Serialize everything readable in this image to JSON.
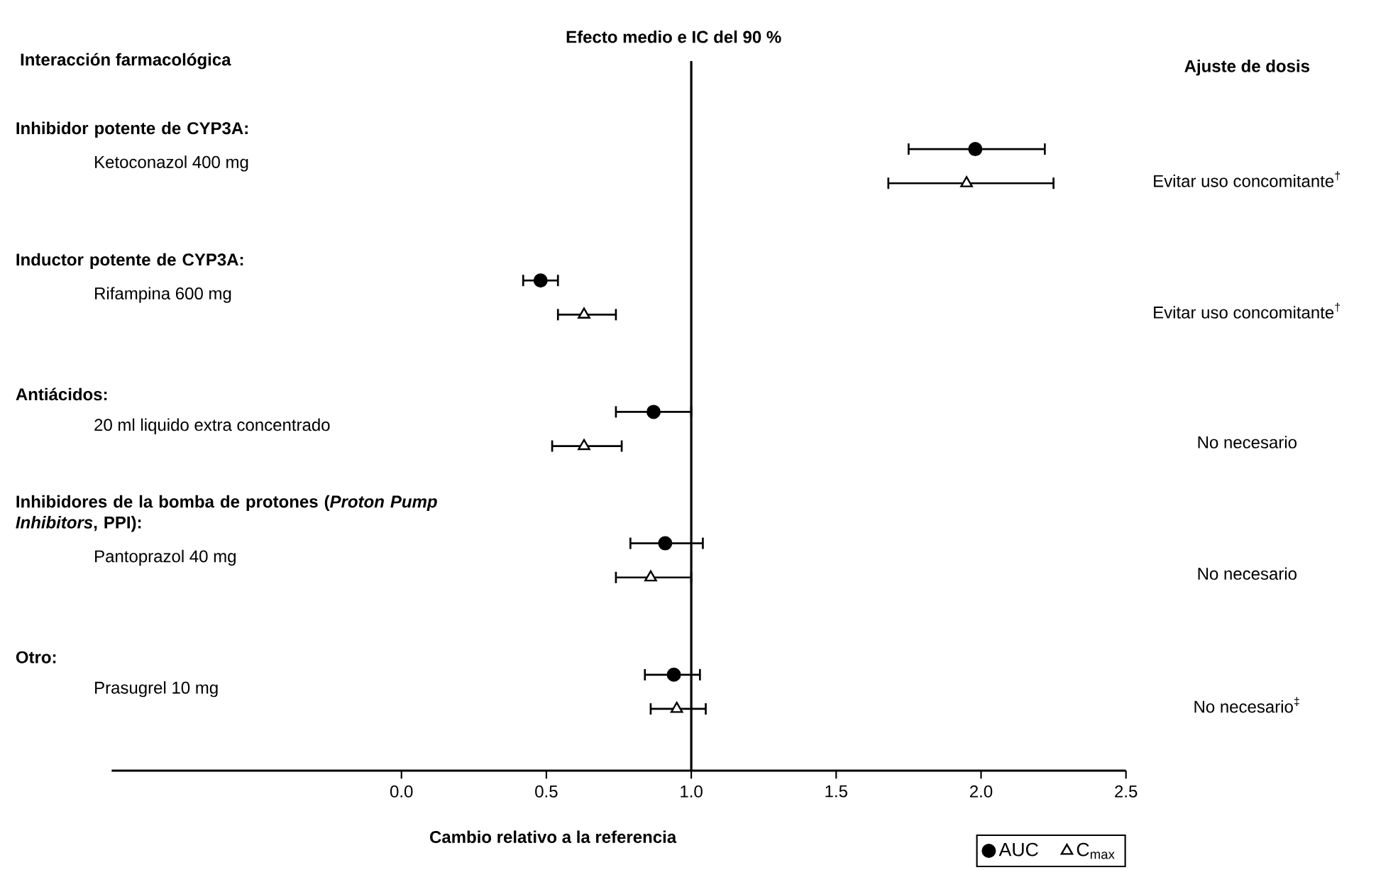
{
  "chart_data": {
    "type": "scatter",
    "orientation": "horizontal",
    "title": "Efecto medio e IC del 90 %",
    "xlabel": "Cambio relativo a la referencia",
    "categories": [
      "Ketoconazol 400 mg",
      "Rifampina 600 mg",
      "20 ml liquido extra concentrado",
      "Pantoprazol 40 mg",
      "Prasugrel 10 mg"
    ],
    "series": [
      {
        "name": "AUC",
        "color": "#000000",
        "marker": "circle",
        "values": [
          1.98,
          0.48,
          0.87,
          0.91,
          0.94
        ],
        "errors": [
          [
            1.75,
            2.22
          ],
          [
            0.42,
            0.54
          ],
          [
            0.74,
            1.0
          ],
          [
            0.79,
            1.04
          ],
          [
            0.84,
            1.03
          ]
        ]
      },
      {
        "name": "C$_{max}$",
        "color": "#000000",
        "marker": "triangle",
        "values": [
          1.95,
          0.63,
          0.63,
          0.86,
          0.95
        ],
        "errors": [
          [
            1.68,
            2.25
          ],
          [
            0.54,
            0.74
          ],
          [
            0.52,
            0.76
          ],
          [
            0.74,
            1.0
          ],
          [
            0.86,
            1.05
          ]
        ]
      }
    ],
    "xlim": [
      -1.0,
      2.5
    ],
    "xticks": [
      {
        "value": 0,
        "label": "0.0"
      },
      0.5,
      {
        "value": 1,
        "label": "1.0"
      },
      1.5,
      {
        "value": 2,
        "label": "2.0"
      },
      2.5
    ],
    "ref_lines": [
      {
        "axis": "x",
        "value": 1
      }
    ],
    "legend": "bottom right",
    "annotations": [
      "Interacción farmacológica",
      "Ajuste de dosis",
      "Inhibidor potente de CYP3A:",
      "Inductor potente de CYP3A:",
      "Antiácidos:",
      "Inhibidores de la bomba de protones (*Proton Pump Inhibitors*, PPI):",
      "Otro:",
      "Evitar uso concomitante$^{†}$",
      "Evitar uso concomitante$^{†}$",
      "No necesario",
      "No necesario",
      "No necesario$^{‡}$"
    ]
  }
}
